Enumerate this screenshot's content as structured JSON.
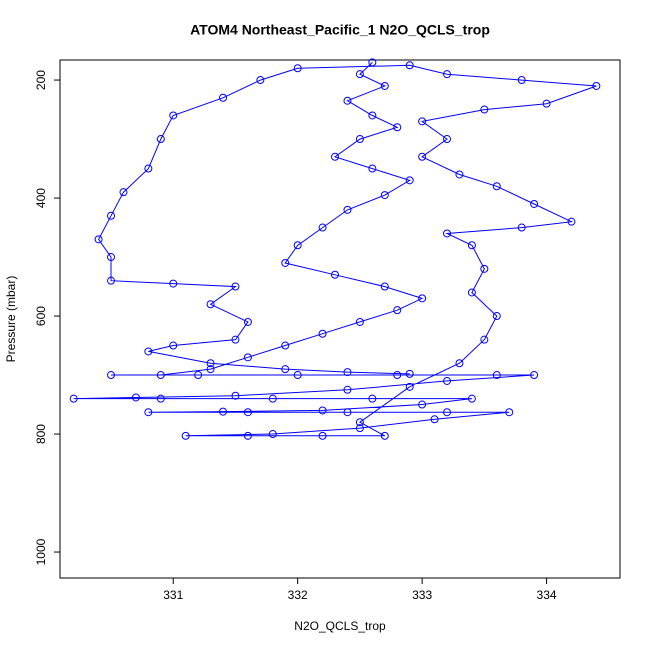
{
  "chart_data": {
    "type": "line",
    "title": "ATOM4 Northeast_Pacific_1 N2O_QCLS_trop",
    "x_label": "N2O_QCLS_trop",
    "y_label": "Pressure (mbar)",
    "x": [
      332.6,
      332.5,
      332.7,
      332.4,
      332.6,
      332.8,
      332.5,
      332.3,
      332.6,
      332.9,
      332.7,
      332.4,
      332.2,
      332.0,
      331.9,
      332.3,
      332.7,
      333.0,
      332.8,
      332.5,
      332.2,
      331.9,
      331.6,
      331.3,
      330.9,
      330.5,
      331.2,
      332.0,
      332.8,
      333.6,
      333.9,
      333.2,
      332.4,
      331.5,
      330.7,
      330.2,
      330.9,
      331.8,
      332.6,
      333.4,
      333.0,
      332.2,
      331.4,
      330.8,
      331.6,
      332.4,
      333.2,
      333.7,
      333.1,
      332.5,
      331.8,
      331.1,
      331.6,
      332.2,
      332.7,
      332.5,
      332.9,
      333.3,
      333.5,
      333.6,
      333.4,
      333.5,
      333.4,
      333.2,
      333.8,
      334.2,
      333.9,
      333.6,
      333.3,
      333.0,
      333.2,
      333.0,
      333.5,
      334.0,
      334.4,
      333.8,
      333.2,
      332.9,
      332.0,
      331.7,
      331.4,
      331.0,
      330.9,
      330.8,
      330.6,
      330.5,
      330.4,
      330.5,
      330.5,
      331.0,
      331.5,
      331.3,
      331.6,
      331.5,
      331.0,
      330.8,
      331.3,
      331.9,
      332.4,
      332.9
    ],
    "series": [
      {
        "name": "N2O_QCLS_trop",
        "color": "#0000ff",
        "values": [
          170,
          190,
          210,
          235,
          260,
          280,
          300,
          330,
          350,
          370,
          395,
          420,
          450,
          480,
          510,
          530,
          550,
          570,
          590,
          610,
          630,
          650,
          670,
          690,
          700,
          700,
          700,
          700,
          700,
          700,
          700,
          710,
          725,
          735,
          738,
          740,
          740,
          740,
          740,
          740,
          750,
          760,
          762,
          763,
          763,
          763,
          763,
          763,
          775,
          790,
          800,
          803,
          803,
          803,
          803,
          780,
          720,
          680,
          640,
          600,
          560,
          520,
          480,
          460,
          450,
          440,
          410,
          380,
          360,
          330,
          300,
          270,
          250,
          240,
          210,
          200,
          190,
          175,
          180,
          200,
          230,
          260,
          300,
          350,
          390,
          430,
          470,
          500,
          540,
          545,
          550,
          580,
          610,
          640,
          650,
          660,
          680,
          690,
          695,
          698
        ]
      }
    ],
    "xlim": [
      330.09,
      334.59
    ],
    "ylim": [
      1044,
      166
    ],
    "xticks": [
      331,
      332,
      333,
      334
    ],
    "yticks": [
      200,
      400,
      600,
      800,
      1000
    ]
  }
}
